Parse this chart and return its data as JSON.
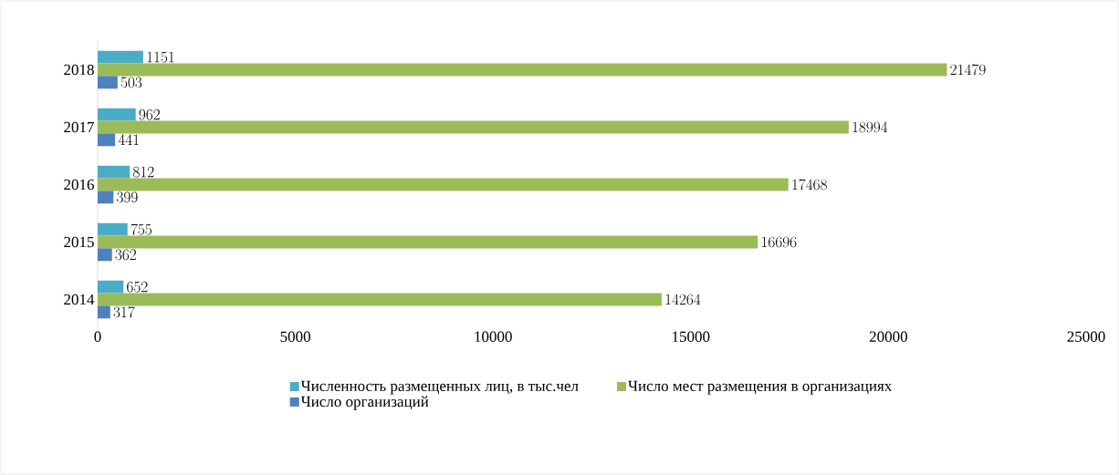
{
  "chart_data": {
    "type": "bar",
    "orientation": "horizontal",
    "categories": [
      "2018",
      "2017",
      "2016",
      "2015",
      "2014"
    ],
    "series": [
      {
        "name": "Численность размещенных лиц, в тыс.чел",
        "color": "#4bacc6",
        "values": [
          1151,
          962,
          812,
          755,
          652
        ]
      },
      {
        "name": "Число мест размещения в организациях",
        "color": "#9bbb59",
        "values": [
          21479,
          18994,
          17468,
          16696,
          14264
        ]
      },
      {
        "name": "Число организаций",
        "color": "#4f81bd",
        "values": [
          503,
          441,
          399,
          362,
          317
        ]
      }
    ],
    "xlim": [
      0,
      25000
    ],
    "xticks": [
      0,
      5000,
      10000,
      15000,
      20000,
      25000
    ],
    "data_labels": true,
    "grid": false,
    "legend": "bottom"
  }
}
